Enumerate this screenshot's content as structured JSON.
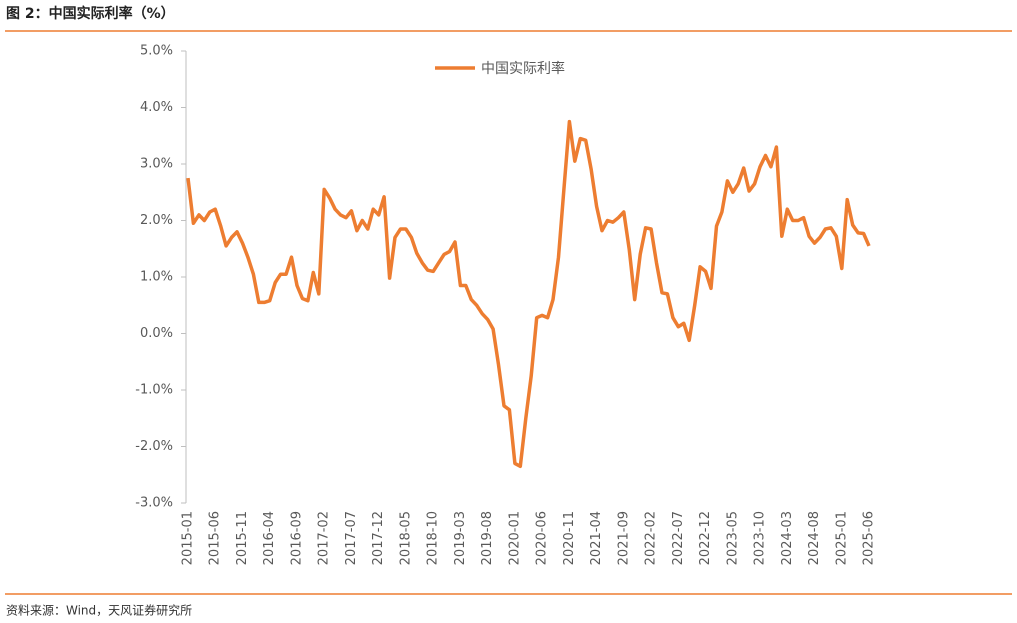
{
  "chart_data": {
    "type": "line",
    "title": "图 2：中国实际利率（%）",
    "source": "资料来源：Wind，天风证券研究所",
    "categories": [
      "2015-01",
      null,
      null,
      null,
      null,
      "2015-06",
      null,
      null,
      null,
      null,
      "2015-11",
      null,
      null,
      null,
      null,
      "2016-04",
      null,
      null,
      null,
      null,
      "2016-09",
      null,
      null,
      null,
      null,
      "2017-02",
      null,
      null,
      null,
      null,
      "2017-07",
      null,
      null,
      null,
      null,
      "2017-12",
      null,
      null,
      null,
      null,
      "2018-05",
      null,
      null,
      null,
      null,
      "2018-10",
      null,
      null,
      null,
      null,
      "2019-03",
      null,
      null,
      null,
      null,
      "2019-08",
      null,
      null,
      null,
      null,
      "2020-01",
      null,
      null,
      null,
      null,
      "2020-06",
      null,
      null,
      null,
      null,
      "2020-11",
      null,
      null,
      null,
      null,
      "2021-04",
      null,
      null,
      null,
      null,
      "2021-09",
      null,
      null,
      null,
      null,
      "2022-02",
      null,
      null,
      null,
      null,
      "2022-07",
      null,
      null,
      null,
      null,
      "2022-12",
      null,
      null,
      null,
      null,
      "2023-05",
      null,
      null,
      null,
      null,
      "2023-10",
      null,
      null,
      null,
      null,
      "2024-03",
      null,
      null,
      null,
      null,
      "2024-08",
      null,
      null,
      null,
      null,
      "2025-01",
      null,
      null,
      null,
      null,
      "2025-06"
    ],
    "series": [
      {
        "name": "中国实际利率",
        "color": "#ed7d31",
        "values": [
          2.75,
          1.95,
          2.1,
          2.0,
          2.15,
          2.2,
          1.9,
          1.55,
          1.7,
          1.8,
          1.6,
          1.35,
          1.05,
          0.55,
          0.55,
          0.58,
          0.9,
          1.05,
          1.05,
          1.35,
          0.85,
          0.62,
          0.58,
          1.08,
          0.7,
          2.55,
          2.4,
          2.2,
          2.1,
          2.05,
          2.17,
          1.82,
          2.0,
          1.85,
          2.2,
          2.1,
          2.42,
          0.98,
          1.7,
          1.85,
          1.85,
          1.7,
          1.42,
          1.25,
          1.12,
          1.1,
          1.25,
          1.4,
          1.45,
          1.62,
          0.85,
          0.85,
          0.6,
          0.5,
          0.35,
          0.25,
          0.08,
          -0.55,
          -1.28,
          -1.35,
          -2.3,
          -2.35,
          -1.5,
          -0.75,
          0.28,
          0.32,
          0.28,
          0.6,
          1.35,
          2.55,
          3.75,
          3.05,
          3.45,
          3.42,
          2.9,
          2.25,
          1.82,
          2.0,
          1.97,
          2.05,
          2.15,
          1.48,
          0.6,
          1.4,
          1.87,
          1.85,
          1.25,
          0.72,
          0.7,
          0.28,
          0.12,
          0.18,
          -0.12,
          0.5,
          1.18,
          1.1,
          0.8,
          1.9,
          2.15,
          2.7,
          2.5,
          2.65,
          2.93,
          2.52,
          2.65,
          2.95,
          3.15,
          2.95,
          3.3,
          1.72,
          2.2,
          2.0,
          2.0,
          2.05,
          1.72,
          1.6,
          1.7,
          1.85,
          1.87,
          1.72,
          1.15,
          2.37,
          1.92,
          1.78,
          1.77,
          1.55
        ]
      }
    ],
    "ylim": [
      -3,
      5
    ],
    "yticks": [
      {
        "value": -3,
        "label": "-3.0%"
      },
      {
        "value": -2,
        "label": "-2.0%"
      },
      {
        "value": -1,
        "label": "-1.0%"
      },
      {
        "value": 0,
        "label": "0.0%"
      },
      {
        "value": 1,
        "label": "1.0%"
      },
      {
        "value": 2,
        "label": "2.0%"
      },
      {
        "value": 3,
        "label": "3.0%"
      },
      {
        "value": 4,
        "label": "4.0%"
      },
      {
        "value": 5,
        "label": "5.0%"
      }
    ],
    "legend": "top"
  }
}
